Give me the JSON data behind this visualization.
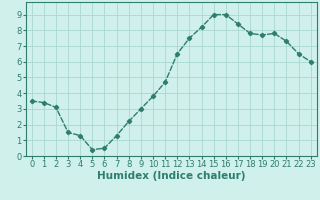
{
  "x": [
    0,
    1,
    2,
    3,
    4,
    5,
    6,
    7,
    8,
    9,
    10,
    11,
    12,
    13,
    14,
    15,
    16,
    17,
    18,
    19,
    20,
    21,
    22,
    23
  ],
  "y": [
    3.5,
    3.4,
    3.1,
    1.5,
    1.3,
    0.4,
    0.5,
    1.3,
    2.2,
    3.0,
    3.8,
    4.7,
    6.5,
    7.5,
    8.2,
    9.0,
    9.0,
    8.4,
    7.8,
    7.7,
    7.8,
    7.3,
    6.5,
    6.0
  ],
  "line_color": "#2e7d6e",
  "marker": "D",
  "marker_size": 2.2,
  "bg_color": "#cff0eb",
  "grid_color": "#aad8d0",
  "xlabel": "Humidex (Indice chaleur)",
  "xlim": [
    -0.5,
    23.5
  ],
  "ylim": [
    0,
    9.8
  ],
  "yticks": [
    0,
    1,
    2,
    3,
    4,
    5,
    6,
    7,
    8,
    9
  ],
  "xticks": [
    0,
    1,
    2,
    3,
    4,
    5,
    6,
    7,
    8,
    9,
    10,
    11,
    12,
    13,
    14,
    15,
    16,
    17,
    18,
    19,
    20,
    21,
    22,
    23
  ],
  "tick_fontsize": 6.0,
  "xlabel_fontsize": 7.5,
  "line_width": 1.0,
  "title_color": "#2e7d6e"
}
